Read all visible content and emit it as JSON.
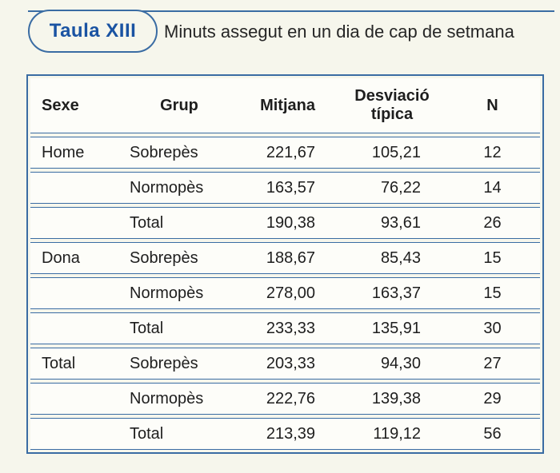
{
  "page": {
    "title_label": "Taula XIII",
    "subtitle": "Minuts assegut en un dia de cap de setmana"
  },
  "table": {
    "header": {
      "sexe": "Sexe",
      "grup": "Grup",
      "mitjana": "Mitjana",
      "desviacio": "Desviació típica",
      "n": "N"
    },
    "rows": [
      {
        "sexe": "Home",
        "grup": "Sobrepès",
        "mitjana": "221,67",
        "desviacio": "105,21",
        "n": "12"
      },
      {
        "sexe": "",
        "grup": "Normopès",
        "mitjana": "163,57",
        "desviacio": "76,22",
        "n": "14"
      },
      {
        "sexe": "",
        "grup": "Total",
        "mitjana": "190,38",
        "desviacio": "93,61",
        "n": "26"
      },
      {
        "sexe": "Dona",
        "grup": "Sobrepès",
        "mitjana": "188,67",
        "desviacio": "85,43",
        "n": "15"
      },
      {
        "sexe": "",
        "grup": "Normopès",
        "mitjana": "278,00",
        "desviacio": "163,37",
        "n": "15"
      },
      {
        "sexe": "",
        "grup": "Total",
        "mitjana": "233,33",
        "desviacio": "135,91",
        "n": "30"
      },
      {
        "sexe": "Total",
        "grup": "Sobrepès",
        "mitjana": "203,33",
        "desviacio": "94,30",
        "n": "27"
      },
      {
        "sexe": "",
        "grup": "Normopès",
        "mitjana": "222,76",
        "desviacio": "139,38",
        "n": "29"
      },
      {
        "sexe": "",
        "grup": "Total",
        "mitjana": "213,39",
        "desviacio": "119,12",
        "n": "56"
      }
    ]
  },
  "colors": {
    "accent_blue": "#1a53a2",
    "line_blue": "#3a6ca3",
    "background_cream": "#f6f6ec",
    "row_white": "#fdfdf9",
    "text": "#1e1e1e"
  }
}
